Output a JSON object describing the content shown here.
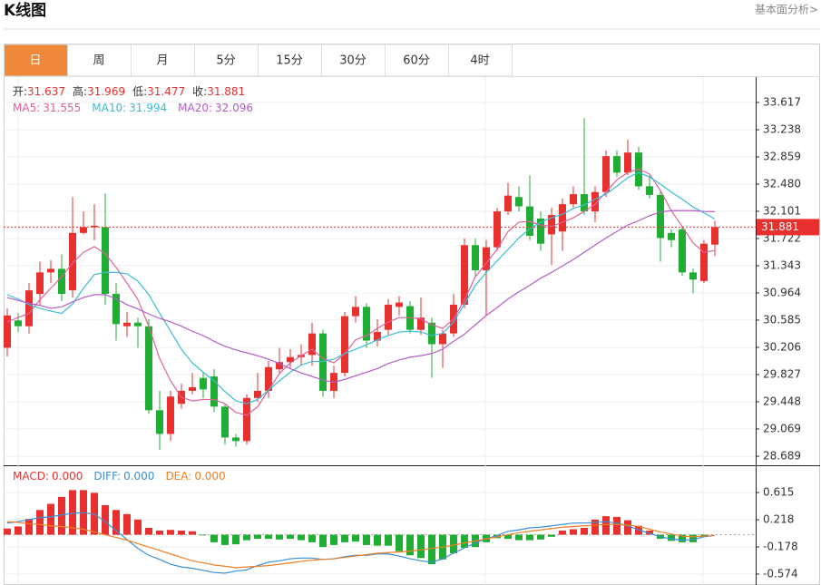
{
  "header": {
    "title": "K线图",
    "link": "基本面分析>"
  },
  "tabs": [
    "日",
    "周",
    "月",
    "5分",
    "15分",
    "30分",
    "60分",
    "4时"
  ],
  "active_tab": 0,
  "info": [
    {
      "label": "开:",
      "value": "31.637"
    },
    {
      "label": "高:",
      "value": "31.969"
    },
    {
      "label": "低:",
      "value": "31.477"
    },
    {
      "label": "收:",
      "value": "31.881"
    }
  ],
  "chart_data": [
    {
      "type": "candlestick",
      "up_color": "#e8312f",
      "down_color": "#1fae33",
      "open": [
        30.2,
        30.58,
        30.5,
        30.95,
        31.25,
        31.3,
        31.0,
        31.8,
        31.88,
        31.88,
        30.95,
        30.5,
        30.55,
        30.5,
        29.33,
        29.0,
        29.42,
        29.6,
        29.78,
        29.8,
        29.38,
        28.95,
        28.9,
        29.5,
        29.6,
        29.9,
        30.0,
        30.07,
        30.1,
        30.4,
        29.6,
        29.85,
        30.64,
        30.77,
        30.3,
        30.45,
        30.77,
        30.78,
        30.45,
        30.55,
        30.25,
        30.4,
        30.8,
        31.63,
        31.28,
        31.6,
        32.1,
        32.3,
        32.17,
        32.0,
        31.78,
        31.82,
        32.2,
        32.34,
        32.1,
        32.37,
        32.87,
        32.64,
        32.92,
        32.45,
        32.33,
        31.8,
        31.85,
        31.25,
        31.13,
        31.637
      ],
      "high": [
        30.75,
        30.68,
        31.1,
        31.4,
        31.42,
        31.5,
        32.3,
        32.1,
        32.2,
        32.35,
        31.1,
        30.7,
        30.62,
        30.6,
        29.6,
        29.6,
        29.7,
        29.85,
        29.85,
        29.9,
        29.42,
        29.0,
        29.55,
        29.85,
        30.02,
        30.2,
        30.18,
        30.25,
        30.55,
        30.45,
        29.95,
        30.7,
        30.92,
        30.82,
        30.6,
        30.88,
        30.92,
        30.85,
        30.9,
        30.62,
        30.45,
        30.95,
        31.72,
        31.72,
        31.7,
        32.15,
        32.5,
        32.45,
        32.6,
        32.1,
        32.15,
        32.28,
        32.45,
        33.4,
        32.45,
        32.95,
        32.95,
        33.1,
        33.0,
        32.6,
        32.4,
        31.85,
        31.9,
        31.3,
        31.7,
        31.969
      ],
      "low": [
        30.08,
        30.42,
        30.4,
        30.8,
        31.1,
        30.85,
        30.9,
        31.78,
        31.7,
        30.8,
        30.3,
        30.35,
        30.2,
        29.28,
        28.78,
        28.9,
        29.35,
        29.55,
        29.5,
        29.3,
        28.85,
        28.82,
        28.85,
        29.45,
        29.5,
        29.85,
        29.92,
        29.95,
        29.95,
        29.52,
        29.5,
        29.8,
        30.55,
        30.2,
        30.22,
        30.38,
        30.65,
        30.4,
        30.38,
        29.78,
        29.92,
        30.35,
        30.75,
        31.2,
        30.65,
        31.55,
        32.05,
        32.1,
        31.7,
        31.55,
        31.35,
        31.55,
        32.15,
        32.05,
        31.95,
        32.3,
        32.58,
        32.6,
        32.4,
        32.28,
        31.4,
        31.6,
        31.2,
        30.96,
        31.1,
        31.477
      ],
      "close": [
        30.65,
        30.5,
        31.0,
        31.25,
        31.3,
        30.95,
        31.8,
        31.88,
        31.9,
        30.95,
        30.53,
        30.55,
        30.5,
        29.33,
        29.0,
        29.52,
        29.6,
        29.65,
        29.62,
        29.38,
        28.95,
        28.9,
        29.5,
        29.6,
        29.93,
        30.0,
        30.07,
        30.1,
        30.4,
        29.6,
        29.85,
        30.64,
        30.77,
        30.3,
        30.42,
        30.8,
        30.83,
        30.45,
        30.62,
        30.25,
        30.4,
        30.8,
        31.63,
        31.28,
        31.6,
        32.1,
        32.32,
        32.17,
        31.76,
        31.65,
        32.05,
        32.2,
        32.34,
        32.1,
        32.37,
        32.87,
        32.64,
        32.92,
        32.45,
        32.33,
        31.73,
        31.7,
        31.25,
        31.15,
        31.65,
        31.881
      ],
      "series": [
        {
          "label": "MA5:",
          "current": "31.555",
          "color": "#e0609a",
          "values": [
            30.56,
            30.62,
            30.68,
            30.87,
            31.03,
            31.19,
            31.38,
            31.53,
            31.61,
            31.51,
            31.32,
            31.1,
            30.87,
            30.5,
            30.05,
            29.74,
            29.51,
            29.46,
            29.48,
            29.48,
            29.42,
            29.3,
            29.26,
            29.38,
            29.61,
            29.84,
            29.99,
            30.09,
            30.18,
            30.05,
            29.99,
            30.12,
            30.31,
            30.37,
            30.47,
            30.56,
            30.62,
            30.62,
            30.6,
            30.52,
            30.47,
            30.6,
            30.87,
            31.19,
            31.38,
            31.57,
            31.82,
            31.95,
            31.96,
            31.91,
            31.89,
            31.95,
            32.01,
            32.1,
            32.2,
            32.37,
            32.54,
            32.64,
            32.69,
            32.62,
            32.39,
            32.11,
            31.89,
            31.66,
            31.53,
            31.555
          ]
        },
        {
          "label": "MA10:",
          "current": "31.994",
          "color": "#3bbcd7",
          "values": [
            30.94,
            30.88,
            30.8,
            30.75,
            30.71,
            30.68,
            30.81,
            31.03,
            31.22,
            31.25,
            31.25,
            31.23,
            31.13,
            30.94,
            30.68,
            30.43,
            30.18,
            29.99,
            29.86,
            29.74,
            29.59,
            29.46,
            29.42,
            29.48,
            29.61,
            29.74,
            29.86,
            29.96,
            30.01,
            30.01,
            30.04,
            30.12,
            30.18,
            30.24,
            30.31,
            30.37,
            30.42,
            30.43,
            30.42,
            30.37,
            30.4,
            30.56,
            30.81,
            31.07,
            31.25,
            31.41,
            31.57,
            31.73,
            31.86,
            31.95,
            32.01,
            32.06,
            32.14,
            32.19,
            32.27,
            32.34,
            32.45,
            32.57,
            32.64,
            32.58,
            32.48,
            32.37,
            32.27,
            32.16,
            32.08,
            31.994
          ]
        },
        {
          "label": "MA20:",
          "current": "32.096",
          "color": "#b35dc7",
          "values": [
            30.9,
            30.86,
            30.82,
            30.79,
            30.75,
            30.77,
            30.84,
            30.9,
            30.94,
            30.94,
            30.88,
            30.8,
            30.74,
            30.67,
            30.61,
            30.56,
            30.5,
            30.43,
            30.37,
            30.29,
            30.22,
            30.17,
            30.13,
            30.09,
            30.04,
            29.98,
            29.91,
            29.85,
            29.8,
            29.75,
            29.72,
            29.76,
            29.81,
            29.86,
            29.91,
            29.98,
            30.03,
            30.07,
            30.09,
            30.12,
            30.18,
            30.29,
            30.39,
            30.52,
            30.65,
            30.76,
            30.88,
            30.98,
            31.07,
            31.17,
            31.25,
            31.34,
            31.43,
            31.53,
            31.63,
            31.73,
            31.82,
            31.91,
            31.97,
            32.04,
            32.09,
            32.11,
            32.11,
            32.11,
            32.1,
            32.096
          ]
        }
      ],
      "ylim": [
        28.563,
        33.971
      ],
      "yticks": [
        33.617,
        33.238,
        32.859,
        {
          "value": 32.48,
          "label": "32.480"
        },
        32.101,
        31.722,
        31.343,
        30.964,
        30.585,
        30.206,
        29.827,
        29.448,
        29.069,
        28.689
      ]
    },
    {
      "type": "macd",
      "up_color": "#e8312f",
      "down_color": "#1fae33",
      "series": [
        {
          "label": "MACD:",
          "current": "0.000",
          "color": "#e8312f",
          "kind": "bar",
          "values": [
            0.09,
            0.12,
            0.23,
            0.36,
            0.45,
            0.55,
            0.65,
            0.65,
            0.61,
            0.43,
            0.36,
            0.3,
            0.22,
            0.1,
            0.06,
            0.07,
            0.06,
            0.05,
            -0.01,
            -0.11,
            -0.15,
            -0.14,
            -0.08,
            -0.06,
            -0.06,
            -0.07,
            -0.06,
            -0.08,
            -0.11,
            -0.18,
            -0.15,
            -0.11,
            -0.1,
            -0.15,
            -0.16,
            -0.16,
            -0.24,
            -0.3,
            -0.34,
            -0.43,
            -0.36,
            -0.27,
            -0.19,
            -0.18,
            -0.11,
            -0.05,
            -0.06,
            -0.08,
            -0.08,
            -0.07,
            -0.03,
            0.06,
            0.08,
            0.1,
            0.22,
            0.27,
            0.26,
            0.21,
            0.13,
            0.06,
            -0.06,
            -0.09,
            -0.11,
            -0.11,
            -0.03,
            0.0
          ]
        },
        {
          "label": "DIFF:",
          "current": "0.000",
          "color": "#3a8fd6",
          "kind": "line",
          "values": [
            0.17,
            0.19,
            0.22,
            0.25,
            0.26,
            0.29,
            0.31,
            0.32,
            0.3,
            0.19,
            0.06,
            -0.07,
            -0.2,
            -0.3,
            -0.36,
            -0.43,
            -0.47,
            -0.49,
            -0.52,
            -0.55,
            -0.56,
            -0.53,
            -0.51,
            -0.45,
            -0.4,
            -0.38,
            -0.35,
            -0.34,
            -0.34,
            -0.36,
            -0.35,
            -0.32,
            -0.3,
            -0.3,
            -0.28,
            -0.28,
            -0.31,
            -0.35,
            -0.38,
            -0.4,
            -0.35,
            -0.27,
            -0.19,
            -0.12,
            -0.06,
            -0.01,
            0.05,
            0.07,
            0.1,
            0.11,
            0.13,
            0.15,
            0.17,
            0.17,
            0.18,
            0.19,
            0.17,
            0.13,
            0.07,
            0.02,
            -0.03,
            -0.06,
            -0.08,
            -0.07,
            -0.03,
            -0.01
          ]
        },
        {
          "label": "DEA:",
          "current": "0.000",
          "color": "#f07f25",
          "kind": "line",
          "values": [
            0.19,
            0.18,
            0.16,
            0.15,
            0.13,
            0.12,
            0.1,
            0.08,
            0.04,
            0.0,
            -0.04,
            -0.08,
            -0.13,
            -0.18,
            -0.23,
            -0.28,
            -0.33,
            -0.38,
            -0.41,
            -0.44,
            -0.46,
            -0.48,
            -0.47,
            -0.46,
            -0.45,
            -0.43,
            -0.41,
            -0.39,
            -0.37,
            -0.36,
            -0.35,
            -0.33,
            -0.31,
            -0.29,
            -0.27,
            -0.26,
            -0.25,
            -0.24,
            -0.22,
            -0.2,
            -0.18,
            -0.15,
            -0.12,
            -0.09,
            -0.06,
            -0.03,
            0.0,
            0.03,
            0.05,
            0.07,
            0.09,
            0.11,
            0.12,
            0.13,
            0.14,
            0.15,
            0.15,
            0.14,
            0.12,
            0.08,
            0.04,
            0.01,
            -0.02,
            -0.03,
            -0.02,
            -0.01
          ]
        }
      ],
      "ylim": [
        -0.706,
        0.985
      ],
      "yticks": [
        0.615,
        0.218,
        -0.178,
        -0.574
      ]
    }
  ]
}
